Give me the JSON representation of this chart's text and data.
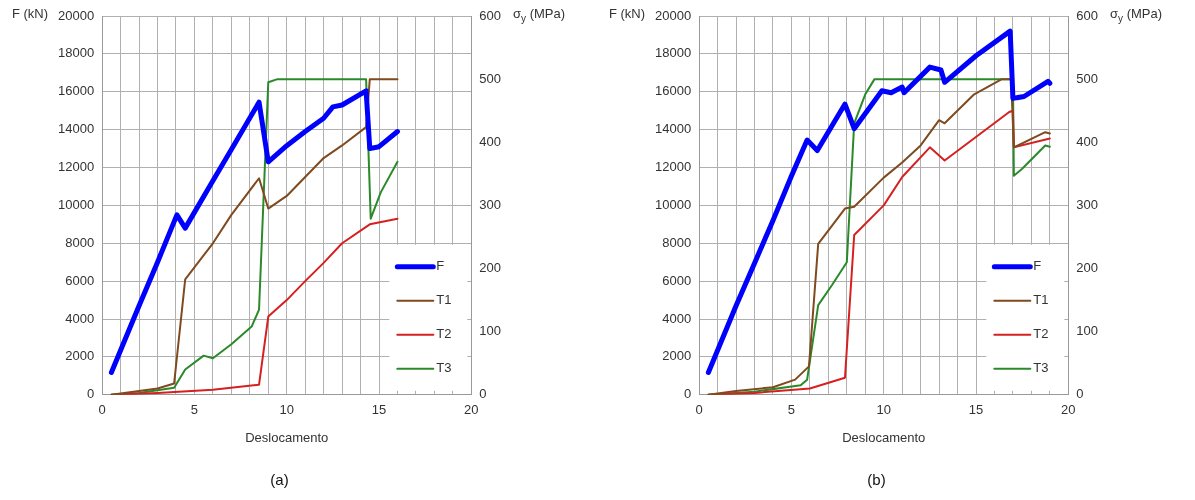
{
  "chart_data": [
    {
      "type": "line",
      "title": "(a)",
      "xlabel": "Deslocamento",
      "ylabel": "F (kN)",
      "y2label": "σ$_{y}$ (MPa)",
      "xlim": [
        0,
        20
      ],
      "xticks": [
        0,
        {
          "value": 1,
          "label": null
        },
        {
          "value": 2,
          "label": null
        },
        {
          "value": 3,
          "label": null
        },
        {
          "value": 4,
          "label": null
        },
        5,
        {
          "value": 6,
          "label": null
        },
        {
          "value": 7,
          "label": null
        },
        {
          "value": 8,
          "label": null
        },
        {
          "value": 9,
          "label": null
        },
        10,
        {
          "value": 11,
          "label": null
        },
        {
          "value": 12,
          "label": null
        },
        {
          "value": 13,
          "label": null
        },
        {
          "value": 14,
          "label": null
        },
        15,
        {
          "value": 16,
          "label": null
        },
        {
          "value": 17,
          "label": null
        },
        {
          "value": 18,
          "label": null
        },
        {
          "value": 19,
          "label": null
        },
        20
      ],
      "ylim": [
        0,
        20000
      ],
      "yticks": [
        0,
        2000,
        4000,
        6000,
        8000,
        10000,
        12000,
        14000,
        16000,
        18000,
        20000
      ],
      "y2lim": [
        0,
        600
      ],
      "y2ticks": [
        0,
        100,
        200,
        300,
        400,
        500,
        600
      ],
      "grid": true,
      "legend": "bottom right",
      "marker": "none",
      "line_style": "solid",
      "series": [
        {
          "name": "F",
          "color": "#0000ff",
          "x": [
            0.5,
            2,
            3,
            4.05,
            4.5,
            6,
            7,
            8.5,
            9,
            10,
            11,
            12,
            12.5,
            13,
            14.3,
            14.5,
            15,
            16
          ],
          "values": [
            1180,
            4700,
            7000,
            9500,
            8800,
            11300,
            12950,
            15450,
            12300,
            13150,
            13900,
            14600,
            15200,
            15300,
            16050,
            13000,
            13100,
            13900
          ]
        },
        {
          "name": "T1",
          "color": "#7f4a1e",
          "axis": "y2",
          "x": [
            0.5,
            2,
            3,
            3.9,
            4.5,
            6,
            7,
            8.5,
            9,
            10,
            11,
            12,
            13,
            14.3,
            14.5,
            16
          ],
          "values": [
            0,
            6,
            10,
            18,
            183,
            240,
            285,
            343,
            295,
            315,
            345,
            375,
            395,
            424,
            500,
            500
          ]
        },
        {
          "name": "T2",
          "color": "#d62020",
          "axis": "y2",
          "x": [
            0.5,
            3,
            6,
            8.5,
            9,
            10,
            11,
            12,
            13,
            14.5,
            16
          ],
          "values": [
            0,
            3,
            8,
            16,
            124,
            150,
            180,
            209,
            240,
            270,
            279
          ]
        },
        {
          "name": "T3",
          "color": "#2a8a2a",
          "axis": "y2",
          "x": [
            0.5,
            2,
            3.9,
            4.5,
            5.5,
            6,
            7,
            8.1,
            8.5,
            9,
            9.5,
            14.3,
            14.55,
            15.1,
            16
          ],
          "values": [
            0,
            3,
            11,
            40,
            62,
            58,
            80,
            108,
            135,
            495,
            500,
            500,
            279,
            321,
            369
          ]
        }
      ]
    },
    {
      "type": "line",
      "title": "(b)",
      "xlabel": "Deslocamento",
      "ylabel": "F (kN)",
      "y2label": "σ$_{y}$ (MPa)",
      "xlim": [
        0,
        20
      ],
      "xticks": [
        0,
        {
          "value": 1,
          "label": null
        },
        {
          "value": 2,
          "label": null
        },
        {
          "value": 3,
          "label": null
        },
        {
          "value": 4,
          "label": null
        },
        5,
        {
          "value": 6,
          "label": null
        },
        {
          "value": 7,
          "label": null
        },
        {
          "value": 8,
          "label": null
        },
        {
          "value": 9,
          "label": null
        },
        10,
        {
          "value": 11,
          "label": null
        },
        {
          "value": 12,
          "label": null
        },
        {
          "value": 13,
          "label": null
        },
        {
          "value": 14,
          "label": null
        },
        15,
        {
          "value": 16,
          "label": null
        },
        {
          "value": 17,
          "label": null
        },
        {
          "value": 18,
          "label": null
        },
        {
          "value": 19,
          "label": null
        },
        20
      ],
      "ylim": [
        0,
        20000
      ],
      "yticks": [
        0,
        2000,
        4000,
        6000,
        8000,
        10000,
        12000,
        14000,
        16000,
        18000,
        20000
      ],
      "y2lim": [
        0,
        600
      ],
      "y2ticks": [
        0,
        100,
        200,
        300,
        400,
        500,
        600
      ],
      "grid": true,
      "legend": "bottom right",
      "marker": "none",
      "line_style": "solid",
      "series": [
        {
          "name": "F",
          "color": "#0000ff",
          "x": [
            0.5,
            2,
            3,
            4,
            5,
            5.85,
            6.4,
            7.9,
            8.4,
            9.9,
            10.4,
            11,
            11.1,
            12.5,
            13.1,
            13.3,
            15,
            16.85,
            17,
            17.6,
            18.9,
            19
          ],
          "values": [
            1180,
            4700,
            6950,
            9200,
            11550,
            13450,
            12900,
            15350,
            14050,
            16050,
            15950,
            16250,
            15950,
            17300,
            17150,
            16500,
            17900,
            19200,
            15650,
            15750,
            16550,
            16450
          ]
        },
        {
          "name": "T1",
          "color": "#7f4a1e",
          "axis": "y2",
          "x": [
            0.5,
            2,
            4,
            5.2,
            5.95,
            6.45,
            7.9,
            8.4,
            10,
            11,
            12,
            13,
            13.3,
            14.9,
            16.4,
            16.9,
            17.05,
            18.75,
            19
          ],
          "values": [
            0,
            6,
            12,
            24,
            45,
            239,
            295,
            298,
            344,
            368,
            395,
            435,
            430,
            476,
            500,
            500,
            392,
            416,
            414
          ]
        },
        {
          "name": "T2",
          "color": "#d62020",
          "axis": "y2",
          "x": [
            0.5,
            3,
            6,
            7.9,
            8.4,
            10,
            11,
            12.5,
            13,
            13.3,
            16.8,
            17,
            17.05,
            19
          ],
          "values": [
            0,
            3,
            10,
            27,
            253,
            300,
            345,
            392,
            379,
            371,
            448,
            450,
            392,
            406
          ]
        },
        {
          "name": "T3",
          "color": "#2a8a2a",
          "axis": "y2",
          "x": [
            0.5,
            3,
            5.5,
            5.85,
            6.45,
            7.2,
            8,
            8.4,
            9,
            9.5,
            17,
            17.05,
            17.5,
            18.75,
            19
          ],
          "values": [
            0,
            5,
            15,
            24,
            142,
            174,
            210,
            430,
            476,
            500,
            500,
            347,
            358,
            395,
            393
          ]
        }
      ]
    }
  ]
}
